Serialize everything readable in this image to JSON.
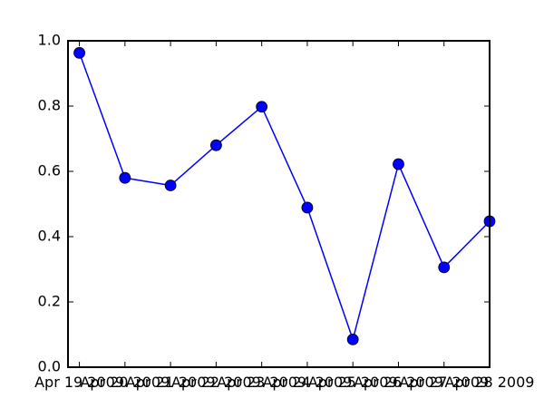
{
  "chart_data": {
    "type": "line",
    "title": "",
    "xlabel": "",
    "ylabel": "",
    "x": [
      "2009-04-19",
      "2009-04-20",
      "2009-04-21",
      "2009-04-22",
      "2009-04-23",
      "2009-04-24",
      "2009-04-25",
      "2009-04-26",
      "2009-04-27",
      "2009-04-28"
    ],
    "x_range": [
      "2009-04-18T18:00",
      "2009-04-28T00:00"
    ],
    "xticks": [
      {
        "value": "2009-04-19",
        "label": "Apr 19 2009"
      },
      {
        "value": "2009-04-20",
        "label": "Apr 20 2009"
      },
      {
        "value": "2009-04-21",
        "label": "Apr 21 2009"
      },
      {
        "value": "2009-04-22",
        "label": "Apr 22 2009"
      },
      {
        "value": "2009-04-23",
        "label": "Apr 23 2009"
      },
      {
        "value": "2009-04-24",
        "label": "Apr 24 2009"
      },
      {
        "value": "2009-04-25",
        "label": "Apr 25 2009"
      },
      {
        "value": "2009-04-26",
        "label": "Apr 26 2009"
      },
      {
        "value": "2009-04-27",
        "label": "Apr 27 2009"
      },
      {
        "value": "2009-04-28",
        "label": "Apr 28 2009"
      }
    ],
    "ylim": [
      0.0,
      1.0
    ],
    "yticks": [
      {
        "value": 0.0,
        "label": "0.0"
      },
      {
        "value": 0.2,
        "label": "0.2"
      },
      {
        "value": 0.4,
        "label": "0.4"
      },
      {
        "value": 0.6,
        "label": "0.6"
      },
      {
        "value": 0.8,
        "label": "0.8"
      },
      {
        "value": 1.0,
        "label": "1.0"
      }
    ],
    "grid": false,
    "legend": "none",
    "series": [
      {
        "values": [
          0.963,
          0.58,
          0.557,
          0.68,
          0.798,
          0.489,
          0.085,
          0.622,
          0.306,
          0.447
        ],
        "line_color": "#0000ff",
        "marker_color": "#0000ff",
        "marker": "circle"
      }
    ]
  }
}
